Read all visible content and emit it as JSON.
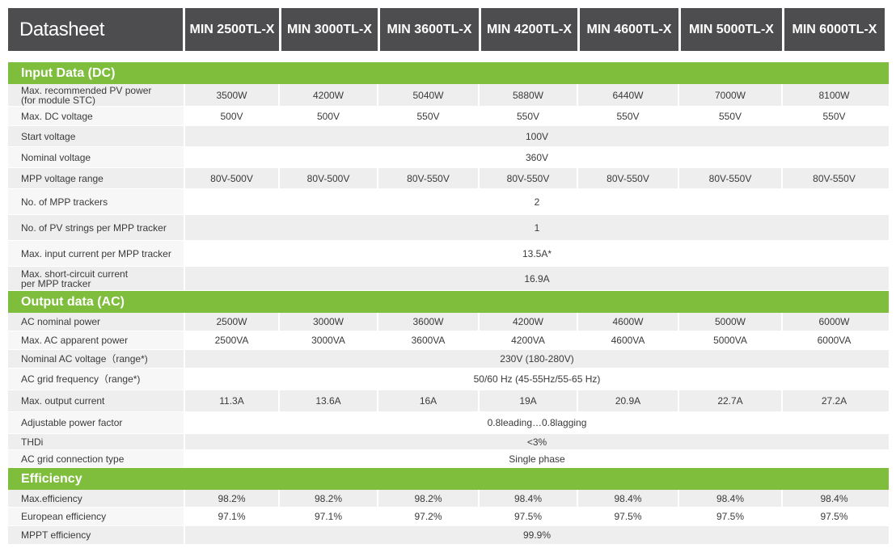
{
  "header": {
    "title": "Datasheet",
    "models": [
      "MIN 2500TL-X",
      "MIN 3000TL-X",
      "MIN 3600TL-X",
      "MIN 4200TL-X",
      "MIN 4600TL-X",
      "MIN 5000TL-X",
      "MIN 6000TL-X"
    ]
  },
  "sections": [
    {
      "title": "Input Data (DC)",
      "rows": [
        {
          "label": "Max. recommended PV power\n(for module STC)",
          "values": [
            "3500W",
            "4200W",
            "5040W",
            "5880W",
            "6440W",
            "7000W",
            "8100W"
          ]
        },
        {
          "label": "Max. DC voltage",
          "values": [
            "500V",
            "500V",
            "550V",
            "550V",
            "550V",
            "550V",
            "550V"
          ]
        },
        {
          "label": "Start voltage",
          "span": "100V"
        },
        {
          "label": "Nominal voltage",
          "span": "360V"
        },
        {
          "label": "MPP voltage range",
          "values": [
            "80V-500V",
            "80V-500V",
            "80V-550V",
            "80V-550V",
            "80V-550V",
            "80V-550V",
            "80V-550V"
          ]
        },
        {
          "label": "No. of MPP trackers",
          "span": "2"
        },
        {
          "label": "No. of PV strings per MPP tracker",
          "span": "1"
        },
        {
          "label": "Max. input current per MPP tracker",
          "span": "13.5A*"
        },
        {
          "label": "Max. short-circuit current\nper MPP tracker",
          "span": "16.9A"
        }
      ]
    },
    {
      "title": "Output data (AC)",
      "rows": [
        {
          "label": "AC nominal power",
          "values": [
            "2500W",
            "3000W",
            "3600W",
            "4200W",
            "4600W",
            "5000W",
            "6000W"
          ]
        },
        {
          "label": "Max. AC apparent power",
          "values": [
            "2500VA",
            "3000VA",
            "3600VA",
            "4200VA",
            "4600VA",
            "5000VA",
            "6000VA"
          ]
        },
        {
          "label": "Nominal AC voltage（range*)",
          "span": "230V (180-280V)"
        },
        {
          "label": "AC grid frequency（range*)",
          "span": "50/60 Hz (45-55Hz/55-65 Hz)"
        },
        {
          "label": "Max. output current",
          "values": [
            "11.3A",
            "13.6A",
            "16A",
            "19A",
            "20.9A",
            "22.7A",
            "27.2A"
          ]
        },
        {
          "label": "Adjustable power factor",
          "span": "0.8leading…0.8lagging"
        },
        {
          "label": "THDi",
          "span": "<3%"
        },
        {
          "label": "AC grid connection type",
          "span": "Single phase"
        }
      ]
    },
    {
      "title": "Efficiency",
      "rows": [
        {
          "label": "Max.efficiency",
          "values": [
            "98.2%",
            "98.2%",
            "98.2%",
            "98.4%",
            "98.4%",
            "98.4%",
            "98.4%"
          ]
        },
        {
          "label": "European efficiency",
          "values": [
            "97.1%",
            "97.1%",
            "97.2%",
            "97.5%",
            "97.5%",
            "97.5%",
            "97.5%"
          ]
        },
        {
          "label": "MPPT efficiency",
          "span": "99.9%"
        }
      ]
    }
  ]
}
